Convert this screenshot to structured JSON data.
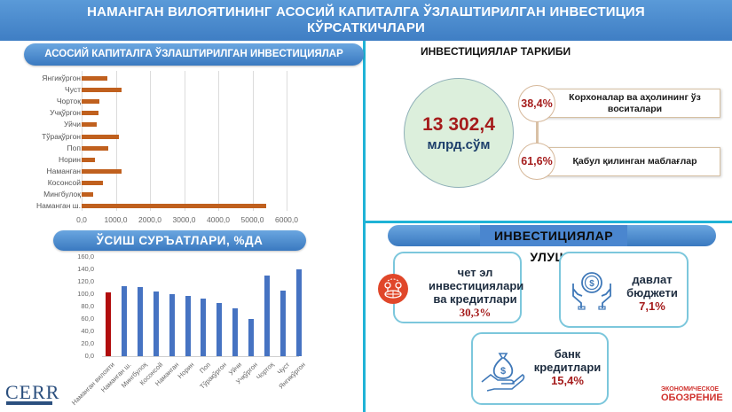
{
  "header": {
    "title_line1": "НАМАНГАН ВИЛОЯТИНИНГ АСОСИЙ КАПИТАЛГА ЎЗЛАШТИРИЛГАН ИНВЕСТИЦИЯ",
    "title_line2": "КЎРСАТКИЧЛАРИ"
  },
  "left": {
    "investments_title": "АСОСИЙ КАПИТАЛГА ЎЗЛАШТИРИЛГАН ИНВЕСТИЦИЯЛАР (млрд.сўм)",
    "growth_title": "ЎСИШ СУРЪАТЛАРИ, %ДА"
  },
  "chart_data": [
    {
      "type": "bar",
      "orientation": "horizontal",
      "title": "АСОСИЙ КАПИТАЛГА ЎЗЛАШТИРИЛГАН ИНВЕСТИЦИЯЛАР (млрд.сўм)",
      "categories": [
        "Янгикўргон",
        "Чуст",
        "Чортоқ",
        "Учқўргон",
        "Уйчи",
        "Тўрақўргон",
        "Поп",
        "Норин",
        "Наманган",
        "Косонсой",
        "Мингбулоқ",
        "Наманган ш."
      ],
      "values": [
        750,
        1180,
        525,
        490,
        450,
        1100,
        780,
        400,
        1165,
        630,
        345,
        5415
      ],
      "xticks": [
        "0,0",
        "1000,0",
        "2000,0",
        "3000,0",
        "4000,0",
        "5000,0",
        "6000,0"
      ],
      "xlim": [
        0,
        6000
      ],
      "grid": true,
      "color": "#c0601e"
    },
    {
      "type": "bar",
      "orientation": "vertical",
      "title": "ЎСИШ СУРЪАТЛАРИ, %ДА",
      "categories": [
        "Наманган вилояти",
        "Наманган ш.",
        "Мингбулоқ",
        "Косонсой",
        "Наманган",
        "Норин",
        "Поп",
        "Тўрақўргон",
        "Уйчи",
        "Учқўргон",
        "Чортоқ",
        "Чуст",
        "Янгикўргон"
      ],
      "values": [
        102.4,
        112.4,
        111.9,
        104.3,
        100.5,
        97.1,
        92.4,
        85.2,
        76.7,
        60.5,
        129.5,
        105.2,
        139.5
      ],
      "yticks": [
        "0,0",
        "20,0",
        "40,0",
        "60,0",
        "80,0",
        "100,0",
        "120,0",
        "140,0",
        "160,0"
      ],
      "ylim": [
        0,
        160
      ],
      "grid": false,
      "colors": {
        "region": "#b10d0d",
        "district": "#4673c2"
      }
    }
  ],
  "structure": {
    "title": "ИНВЕСТИЦИЯЛАР ТАРКИБИ",
    "total_value": "13 302,4",
    "total_unit": "млрд.сўм",
    "components": [
      {
        "percent": "38,4%",
        "label": "Корхоналар ва аҳолининг ўз воситалари"
      },
      {
        "percent": "61,6%",
        "label": "Қабул қилинган маблағлар"
      }
    ]
  },
  "shares": {
    "title": "ИНВЕСТИЦИЯЛАР УЛУШИ",
    "cards": [
      {
        "icon": "globe-investment-icon",
        "line1": "чет эл",
        "line2": "инвестициялари",
        "line3": "ва кредитлари",
        "value": "30,3%"
      },
      {
        "icon": "hands-coin-icon",
        "line1": "давлат",
        "line2": "бюджети",
        "value": "7,1%"
      },
      {
        "icon": "hand-money-bag-icon",
        "line1": "банк",
        "line2": "кредитлари",
        "value": "15,4%"
      }
    ]
  },
  "logos": {
    "left": "CERR",
    "right_line1": "ЭКОНОМИЧЕСКОЕ",
    "right_line2": "ОБОЗРЕНИЕ"
  }
}
